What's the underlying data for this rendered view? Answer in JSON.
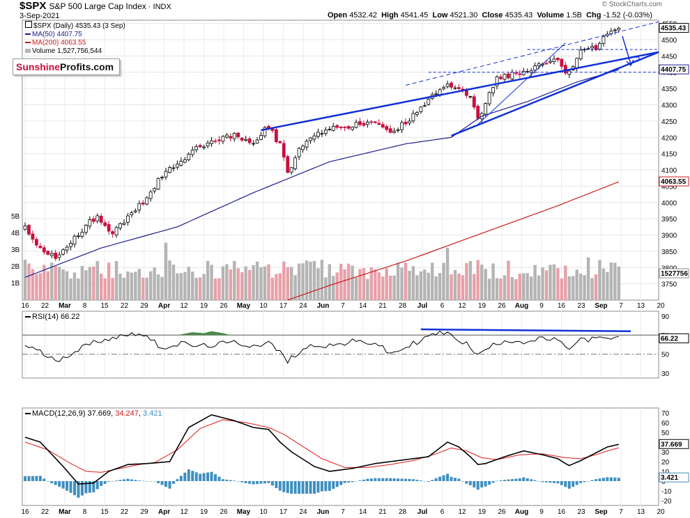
{
  "header": {
    "symbol": "$SPX",
    "name": "S&P 500 Large Cap Index",
    "exchange": "INDX",
    "date": "3-Sep-2021",
    "open_label": "Open",
    "open": "4532.42",
    "high_label": "High",
    "high": "4541.45",
    "low_label": "Low",
    "low": "4521.30",
    "close_label": "Close",
    "close": "4535.43",
    "volume_label": "Volume",
    "volume": "1.5B",
    "chg_label": "Chg",
    "chg": "-1.52 (-0.03%)",
    "watermark": "© StockCharts.com"
  },
  "legend": {
    "price": "$SPX (Daily) 4535.43 (3 Sep)",
    "ma50": "MA(50) 4407.75",
    "ma200": "MA(200) 4063.55",
    "volume": "Volume 1,527,756,544"
  },
  "logo": {
    "part1": "Sunshine",
    "part2": "Profits.com"
  },
  "annotation": {
    "question": "?"
  },
  "colors": {
    "up": "#000000",
    "down": "#c8103c",
    "ma50": "#1c1c8c",
    "ma200": "#cc1a1a",
    "trend": "#1030d8",
    "vol_up": "#b4b4b4",
    "vol_down": "#e8a0a8",
    "macd_hist": "#3f8fbf",
    "rsi_fill": "#4a8a4a"
  },
  "chart_data": [
    {
      "type": "candlestick",
      "title": "$SPX (Daily)",
      "ylim": [
        3700,
        4560
      ],
      "y_ticks": [
        "4550",
        "4500",
        "4450",
        "4400",
        "4350",
        "4300",
        "4250",
        "4200",
        "4150",
        "4100",
        "4050",
        "4000",
        "3950",
        "3900",
        "3850",
        "3800",
        "3750"
      ],
      "right_labels": {
        "last": "4535.43",
        "ma50": "4407.75",
        "ma200": "4063.55",
        "volume": "1527756"
      },
      "volume_ticks": [
        "5B",
        "4B",
        "3B",
        "2B",
        "1B"
      ],
      "x_ticks": [
        "16",
        "22",
        "Mar",
        "8",
        "15",
        "22",
        "29",
        "Apr",
        "12",
        "19",
        "26",
        "May",
        "10",
        "17",
        "24",
        "Jun",
        "7",
        "14",
        "21",
        "28",
        "Jul",
        "6",
        "12",
        "19",
        "26",
        "Aug",
        "9",
        "16",
        "23",
        "Sep",
        "7",
        "13",
        "20"
      ],
      "anchors": [
        [
          0,
          3925
        ],
        [
          4,
          3855
        ],
        [
          8,
          3830
        ],
        [
          14,
          3905
        ],
        [
          19,
          3960
        ],
        [
          23,
          3905
        ],
        [
          28,
          3970
        ],
        [
          32,
          4010
        ],
        [
          36,
          4085
        ],
        [
          41,
          4130
        ],
        [
          46,
          4175
        ],
        [
          51,
          4195
        ],
        [
          55,
          4210
        ],
        [
          60,
          4185
        ],
        [
          64,
          4235
        ],
        [
          67,
          4175
        ],
        [
          69,
          4090
        ],
        [
          72,
          4160
        ],
        [
          76,
          4205
        ],
        [
          81,
          4225
        ],
        [
          86,
          4235
        ],
        [
          92,
          4250
        ],
        [
          96,
          4215
        ],
        [
          100,
          4245
        ],
        [
          104,
          4290
        ],
        [
          109,
          4350
        ],
        [
          113,
          4360
        ],
        [
          117,
          4320
        ],
        [
          119,
          4255
        ],
        [
          121,
          4305
        ],
        [
          124,
          4380
        ],
        [
          128,
          4395
        ],
        [
          132,
          4405
        ],
        [
          136,
          4430
        ],
        [
          140,
          4445
        ],
        [
          142,
          4390
        ],
        [
          143,
          4400
        ],
        [
          146,
          4460
        ],
        [
          150,
          4475
        ],
        [
          153,
          4520
        ],
        [
          156,
          4535
        ]
      ],
      "ma50": [
        [
          0,
          3770
        ],
        [
          20,
          3860
        ],
        [
          40,
          3925
        ],
        [
          60,
          4030
        ],
        [
          80,
          4125
        ],
        [
          100,
          4180
        ],
        [
          112,
          4200
        ],
        [
          120,
          4265
        ],
        [
          132,
          4310
        ],
        [
          145,
          4370
        ],
        [
          156,
          4407.75
        ]
      ],
      "ma200": [
        [
          69,
          3700
        ],
        [
          80,
          3745
        ],
        [
          100,
          3820
        ],
        [
          120,
          3905
        ],
        [
          140,
          3990
        ],
        [
          156,
          4063.55
        ]
      ]
    },
    {
      "type": "line",
      "title": "RSI(14)",
      "value": "66.22",
      "ylim": [
        30,
        90
      ],
      "y_ticks": [
        "90",
        "70",
        "50",
        "30"
      ],
      "levels": [
        70,
        50
      ],
      "anchors": [
        [
          0,
          60
        ],
        [
          4,
          52
        ],
        [
          8,
          43
        ],
        [
          14,
          55
        ],
        [
          19,
          64
        ],
        [
          24,
          68
        ],
        [
          30,
          73
        ],
        [
          36,
          57
        ],
        [
          41,
          61
        ],
        [
          46,
          58
        ],
        [
          50,
          60
        ],
        [
          55,
          62
        ],
        [
          60,
          59
        ],
        [
          64,
          62
        ],
        [
          67,
          52
        ],
        [
          69,
          42
        ],
        [
          72,
          53
        ],
        [
          76,
          60
        ],
        [
          81,
          59
        ],
        [
          86,
          63
        ],
        [
          92,
          62
        ],
        [
          96,
          50
        ],
        [
          100,
          57
        ],
        [
          104,
          65
        ],
        [
          109,
          73
        ],
        [
          113,
          68
        ],
        [
          117,
          58
        ],
        [
          119,
          48
        ],
        [
          121,
          55
        ],
        [
          126,
          65
        ],
        [
          132,
          63
        ],
        [
          136,
          66
        ],
        [
          140,
          65
        ],
        [
          142,
          55
        ],
        [
          143,
          57
        ],
        [
          146,
          65
        ],
        [
          150,
          66
        ],
        [
          153,
          66
        ],
        [
          156,
          66.22
        ]
      ]
    },
    {
      "type": "line",
      "title": "MACD(12,26,9)",
      "values": {
        "macd": "37.669",
        "signal": "34.247",
        "hist": "3.421"
      },
      "ylim": [
        -25,
        75
      ],
      "y_ticks": [
        "70",
        "60",
        "50",
        "40",
        "30",
        "20",
        "10",
        "0",
        "-10",
        "-20"
      ],
      "macd_anchors": [
        [
          0,
          45
        ],
        [
          4,
          40
        ],
        [
          10,
          15
        ],
        [
          14,
          -3
        ],
        [
          18,
          -2
        ],
        [
          22,
          10
        ],
        [
          27,
          17
        ],
        [
          32,
          18
        ],
        [
          38,
          20
        ],
        [
          43,
          55
        ],
        [
          49,
          68
        ],
        [
          55,
          62
        ],
        [
          60,
          55
        ],
        [
          64,
          53
        ],
        [
          67,
          40
        ],
        [
          70,
          30
        ],
        [
          76,
          15
        ],
        [
          80,
          10
        ],
        [
          86,
          13
        ],
        [
          92,
          18
        ],
        [
          100,
          22
        ],
        [
          106,
          25
        ],
        [
          111,
          40
        ],
        [
          114,
          35
        ],
        [
          117,
          25
        ],
        [
          119,
          17
        ],
        [
          121,
          18
        ],
        [
          126,
          25
        ],
        [
          131,
          31
        ],
        [
          136,
          27
        ],
        [
          140,
          23
        ],
        [
          142,
          18
        ],
        [
          143,
          16
        ],
        [
          146,
          21
        ],
        [
          150,
          29
        ],
        [
          153,
          35
        ],
        [
          156,
          37.669
        ]
      ],
      "signal_anchors": [
        [
          0,
          40
        ],
        [
          6,
          32
        ],
        [
          12,
          18
        ],
        [
          16,
          10
        ],
        [
          20,
          9
        ],
        [
          25,
          13
        ],
        [
          30,
          17
        ],
        [
          34,
          19
        ],
        [
          40,
          32
        ],
        [
          46,
          54
        ],
        [
          52,
          63
        ],
        [
          58,
          60
        ],
        [
          64,
          55
        ],
        [
          68,
          48
        ],
        [
          72,
          38
        ],
        [
          78,
          23
        ],
        [
          84,
          14
        ],
        [
          90,
          14
        ],
        [
          96,
          17
        ],
        [
          102,
          21
        ],
        [
          108,
          28
        ],
        [
          112,
          34
        ],
        [
          116,
          31
        ],
        [
          120,
          24
        ],
        [
          124,
          22
        ],
        [
          130,
          27
        ],
        [
          136,
          28
        ],
        [
          142,
          24
        ],
        [
          146,
          23
        ],
        [
          150,
          27
        ],
        [
          153,
          31
        ],
        [
          156,
          34.247
        ]
      ],
      "x_ticks": [
        "16",
        "22",
        "Mar",
        "8",
        "15",
        "22",
        "29",
        "Apr",
        "12",
        "19",
        "26",
        "May",
        "10",
        "17",
        "24",
        "Jun",
        "7",
        "14",
        "21",
        "28",
        "Jul",
        "6",
        "12",
        "19",
        "26",
        "Aug",
        "9",
        "16",
        "23",
        "Sep",
        "7",
        "13",
        "20"
      ]
    }
  ]
}
